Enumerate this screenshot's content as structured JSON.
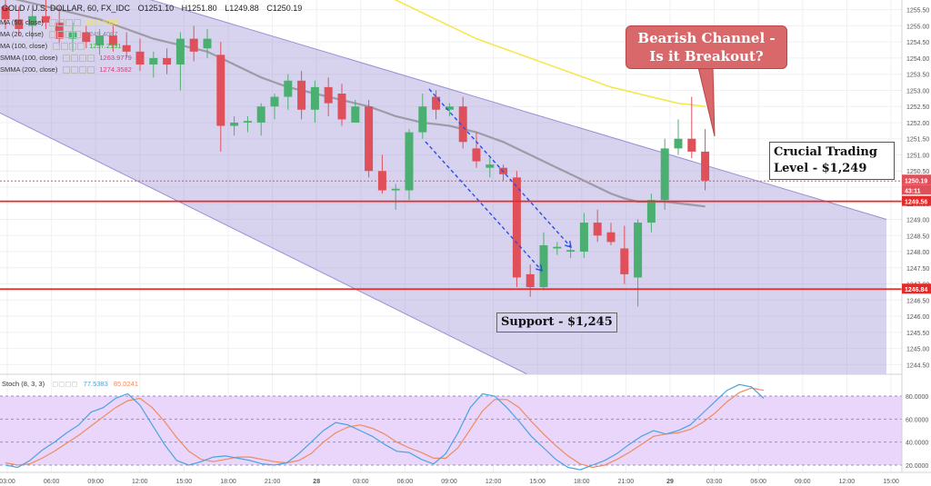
{
  "header": {
    "symbol": "GOLD / U.S. DOLLAR, 60, FX_IDC",
    "open": "O1251.10",
    "high": "H1251.80",
    "low": "L1249.88",
    "close": "C1250.19"
  },
  "indicators": [
    {
      "label": "MA (50, close)",
      "value": "1252.5063",
      "color": "#f5e642"
    },
    {
      "label": "MA (20, close)",
      "value": "1249.4087",
      "color": "#888888"
    },
    {
      "label": "MA (100, close)",
      "value": "1257.2131",
      "color": "#2eb82e"
    },
    {
      "label": "SMMA (100, close)",
      "value": "1263.9779",
      "color": "#e03a7a"
    },
    {
      "label": "SMMA (200, close)",
      "value": "1274.3582",
      "color": "#e03a7a"
    }
  ],
  "stoch": {
    "label": "Stoch (8, 3, 3)",
    "k_value": "77.5383",
    "d_value": "85.0241",
    "k_color": "#4aa3df",
    "d_color": "#f08a60"
  },
  "annotations": {
    "channel_callout": "Bearish Channel - Is it Breakout?",
    "crucial_level": "Crucial Trading Level - $1,249",
    "support": "Support - $1,245"
  },
  "price_axis": {
    "ticks": [
      "1255.50",
      "1255.00",
      "1254.50",
      "1254.00",
      "1253.50",
      "1253.00",
      "1252.50",
      "1252.00",
      "1251.50",
      "1251.00",
      "1250.50",
      "1250.00",
      "1249.50",
      "1249.00",
      "1248.50",
      "1248.00",
      "1247.50",
      "1247.00",
      "1246.50",
      "1246.00",
      "1245.50",
      "1245.00",
      "1244.50"
    ],
    "current_price_tag": "1250.19",
    "countdown_tag": "43:11",
    "resistance_tag": "1249.56",
    "support_tag": "1246.84"
  },
  "stoch_axis": {
    "ticks": [
      "80.0000",
      "60.0000",
      "40.0000",
      "20.0000"
    ]
  },
  "time_axis": {
    "ticks": [
      "03:00",
      "06:00",
      "09:00",
      "12:00",
      "15:00",
      "18:00",
      "21:00",
      "28",
      "03:00",
      "06:00",
      "09:00",
      "12:00",
      "15:00",
      "18:00",
      "21:00",
      "29",
      "03:00",
      "06:00",
      "09:00",
      "12:00",
      "15:00"
    ]
  },
  "chart_data": {
    "type": "candlestick",
    "y_range": [
      1244.2,
      1255.8
    ],
    "candles": [
      {
        "o": 1255.6,
        "h": 1256.0,
        "l": 1254.9,
        "c": 1255.2
      },
      {
        "o": 1255.2,
        "h": 1255.6,
        "l": 1254.7,
        "c": 1254.9
      },
      {
        "o": 1255.0,
        "h": 1255.5,
        "l": 1254.6,
        "c": 1255.3
      },
      {
        "o": 1255.3,
        "h": 1255.8,
        "l": 1254.9,
        "c": 1255.1
      },
      {
        "o": 1255.1,
        "h": 1255.6,
        "l": 1254.4,
        "c": 1254.6
      },
      {
        "o": 1254.6,
        "h": 1255.1,
        "l": 1254.2,
        "c": 1254.8
      },
      {
        "o": 1254.8,
        "h": 1255.0,
        "l": 1254.3,
        "c": 1254.5
      },
      {
        "o": 1254.4,
        "h": 1254.9,
        "l": 1254.1,
        "c": 1254.7
      },
      {
        "o": 1254.7,
        "h": 1255.0,
        "l": 1254.2,
        "c": 1254.4
      },
      {
        "o": 1254.4,
        "h": 1254.8,
        "l": 1254.0,
        "c": 1254.2
      },
      {
        "o": 1254.2,
        "h": 1254.6,
        "l": 1253.6,
        "c": 1253.8
      },
      {
        "o": 1253.8,
        "h": 1254.2,
        "l": 1253.4,
        "c": 1254.0
      },
      {
        "o": 1254.0,
        "h": 1254.3,
        "l": 1253.5,
        "c": 1253.8
      },
      {
        "o": 1253.8,
        "h": 1254.8,
        "l": 1253.0,
        "c": 1254.6
      },
      {
        "o": 1254.6,
        "h": 1255.0,
        "l": 1253.9,
        "c": 1254.2
      },
      {
        "o": 1254.3,
        "h": 1254.9,
        "l": 1254.0,
        "c": 1254.6
      },
      {
        "o": 1254.1,
        "h": 1254.5,
        "l": 1251.1,
        "c": 1251.9
      },
      {
        "o": 1251.9,
        "h": 1252.2,
        "l": 1251.6,
        "c": 1252.0
      },
      {
        "o": 1252.0,
        "h": 1252.2,
        "l": 1251.7,
        "c": 1252.05
      },
      {
        "o": 1252.0,
        "h": 1252.6,
        "l": 1251.6,
        "c": 1252.5
      },
      {
        "o": 1252.5,
        "h": 1252.9,
        "l": 1252.1,
        "c": 1252.8
      },
      {
        "o": 1252.8,
        "h": 1253.5,
        "l": 1252.4,
        "c": 1253.3
      },
      {
        "o": 1253.3,
        "h": 1253.6,
        "l": 1252.1,
        "c": 1252.4
      },
      {
        "o": 1252.4,
        "h": 1253.3,
        "l": 1252.0,
        "c": 1253.1
      },
      {
        "o": 1253.1,
        "h": 1253.4,
        "l": 1252.2,
        "c": 1252.6
      },
      {
        "o": 1252.9,
        "h": 1253.2,
        "l": 1251.9,
        "c": 1252.1
      },
      {
        "o": 1252.0,
        "h": 1252.7,
        "l": 1252.0,
        "c": 1252.5
      },
      {
        "o": 1252.5,
        "h": 1252.7,
        "l": 1250.3,
        "c": 1250.5
      },
      {
        "o": 1250.5,
        "h": 1251.0,
        "l": 1249.8,
        "c": 1249.9
      },
      {
        "o": 1249.9,
        "h": 1250.1,
        "l": 1249.3,
        "c": 1249.95
      },
      {
        "o": 1249.9,
        "h": 1251.8,
        "l": 1249.6,
        "c": 1251.7
      },
      {
        "o": 1251.7,
        "h": 1252.9,
        "l": 1251.5,
        "c": 1252.5
      },
      {
        "o": 1252.8,
        "h": 1253.0,
        "l": 1252.1,
        "c": 1252.4
      },
      {
        "o": 1252.4,
        "h": 1252.6,
        "l": 1252.2,
        "c": 1252.5
      },
      {
        "o": 1252.5,
        "h": 1252.8,
        "l": 1251.2,
        "c": 1251.4
      },
      {
        "o": 1251.2,
        "h": 1251.7,
        "l": 1250.6,
        "c": 1250.8
      },
      {
        "o": 1250.6,
        "h": 1250.9,
        "l": 1250.3,
        "c": 1250.7
      },
      {
        "o": 1250.6,
        "h": 1250.7,
        "l": 1250.2,
        "c": 1250.4
      },
      {
        "o": 1250.3,
        "h": 1250.5,
        "l": 1246.9,
        "c": 1247.2
      },
      {
        "o": 1247.3,
        "h": 1247.6,
        "l": 1246.6,
        "c": 1246.9
      },
      {
        "o": 1246.9,
        "h": 1248.6,
        "l": 1246.8,
        "c": 1248.2
      },
      {
        "o": 1248.1,
        "h": 1248.3,
        "l": 1247.9,
        "c": 1248.15
      },
      {
        "o": 1248.0,
        "h": 1248.2,
        "l": 1247.8,
        "c": 1248.05
      },
      {
        "o": 1248.0,
        "h": 1249.2,
        "l": 1247.8,
        "c": 1248.9
      },
      {
        "o": 1248.9,
        "h": 1249.3,
        "l": 1248.3,
        "c": 1248.5
      },
      {
        "o": 1248.6,
        "h": 1248.9,
        "l": 1248.2,
        "c": 1248.3
      },
      {
        "o": 1248.1,
        "h": 1248.8,
        "l": 1247.0,
        "c": 1247.3
      },
      {
        "o": 1247.2,
        "h": 1249.0,
        "l": 1246.3,
        "c": 1248.9
      },
      {
        "o": 1248.9,
        "h": 1249.8,
        "l": 1248.6,
        "c": 1249.6
      },
      {
        "o": 1249.6,
        "h": 1251.5,
        "l": 1249.3,
        "c": 1251.2
      },
      {
        "o": 1251.2,
        "h": 1252.1,
        "l": 1251.0,
        "c": 1251.5
      },
      {
        "o": 1251.5,
        "h": 1252.8,
        "l": 1250.9,
        "c": 1251.1
      },
      {
        "o": 1251.1,
        "h": 1251.8,
        "l": 1249.9,
        "c": 1250.2
      }
    ],
    "moving_average_20": [
      1255.9,
      1255.8,
      1255.7,
      1255.6,
      1255.5,
      1255.4,
      1255.3,
      1255.2,
      1255.05,
      1254.9,
      1254.75,
      1254.6,
      1254.5,
      1254.4,
      1254.3,
      1254.2,
      1254.0,
      1253.8,
      1253.6,
      1253.4,
      1253.25,
      1253.1,
      1253.0,
      1252.9,
      1252.8,
      1252.7,
      1252.6,
      1252.5,
      1252.35,
      1252.2,
      1252.1,
      1252.0,
      1251.95,
      1251.9,
      1251.8,
      1251.7,
      1251.55,
      1251.4,
      1251.2,
      1251.0,
      1250.8,
      1250.6,
      1250.4,
      1250.2,
      1250.0,
      1249.8,
      1249.65,
      1249.55,
      1249.55,
      1249.55,
      1249.5,
      1249.45,
      1249.4
    ],
    "moving_average_50": [
      1258.9,
      1258.7,
      1258.4,
      1258.1,
      1257.8,
      1257.5,
      1257.2,
      1256.9,
      1256.6,
      1256.3,
      1256.0,
      1255.8,
      1255.6,
      1255.4,
      1255.2,
      1255.0,
      1254.8,
      1254.6,
      1254.45,
      1254.3,
      1254.15,
      1254.0,
      1253.85,
      1253.7,
      1253.55,
      1253.4,
      1253.25,
      1253.1,
      1253.0,
      1252.9,
      1252.8,
      1252.7,
      1252.6,
      1252.55,
      1252.5
    ],
    "resistance_level": 1249.56,
    "support_level": 1246.84,
    "current_price": 1250.19,
    "channel": {
      "upper_start": 1257.2,
      "upper_end": 1249.0,
      "lower_start": 1252.3,
      "lower_end": 1244.2
    },
    "stochastic": {
      "k": [
        20,
        18,
        24,
        33,
        40,
        48,
        55,
        66,
        70,
        78,
        82,
        72,
        55,
        38,
        24,
        20,
        23,
        27,
        28,
        26,
        24,
        21,
        20,
        22,
        30,
        40,
        50,
        57,
        55,
        50,
        45,
        38,
        32,
        31,
        25,
        21,
        30,
        48,
        70,
        82,
        80,
        70,
        58,
        45,
        35,
        25,
        18,
        16,
        20,
        24,
        30,
        38,
        45,
        50,
        47,
        50,
        55,
        65,
        75,
        85,
        90,
        88,
        78
      ],
      "d": [
        22,
        20,
        21,
        26,
        32,
        39,
        46,
        54,
        62,
        70,
        76,
        78,
        70,
        58,
        44,
        32,
        25,
        23,
        25,
        27,
        27,
        25,
        23,
        22,
        24,
        30,
        40,
        48,
        53,
        55,
        52,
        47,
        40,
        35,
        31,
        26,
        26,
        35,
        51,
        67,
        77,
        77,
        70,
        58,
        47,
        37,
        28,
        21,
        18,
        20,
        25,
        31,
        38,
        45,
        47,
        48,
        51,
        57,
        65,
        75,
        83,
        87,
        85
      ]
    }
  }
}
